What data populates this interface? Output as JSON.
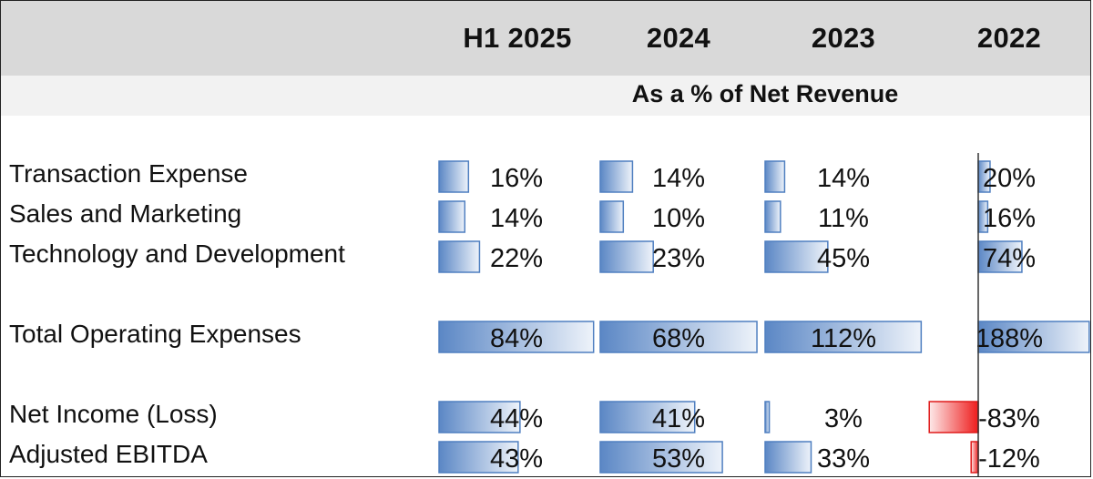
{
  "chart_data": {
    "type": "table",
    "subtitle": "As a % of Net Revenue",
    "columns": [
      "H1 2025",
      "2024",
      "2023",
      "2022"
    ],
    "rows": [
      {
        "label": "Transaction Expense",
        "values": [
          16,
          14,
          14,
          20
        ],
        "labels": [
          "16%",
          "14%",
          "14%",
          "20%"
        ]
      },
      {
        "label": "Sales and Marketing",
        "values": [
          14,
          10,
          11,
          16
        ],
        "labels": [
          "14%",
          "10%",
          "11%",
          "16%"
        ]
      },
      {
        "label": "Technology and Development",
        "values": [
          22,
          23,
          45,
          74
        ],
        "labels": [
          "22%",
          "23%",
          "45%",
          "74%"
        ]
      },
      {
        "label": "Total Operating Expenses",
        "values": [
          84,
          68,
          112,
          188
        ],
        "labels": [
          "84%",
          "68%",
          "112%",
          "188%"
        ]
      },
      {
        "label": "Net Income (Loss)",
        "values": [
          44,
          41,
          3,
          -83
        ],
        "labels": [
          "44%",
          "41%",
          "3%",
          "-83%"
        ]
      },
      {
        "label": "Adjusted EBITDA",
        "values": [
          43,
          53,
          33,
          -12
        ],
        "labels": [
          "43%",
          "53%",
          "33%",
          "-12%"
        ]
      }
    ],
    "colors": {
      "positive": "#4f7fc0",
      "negative": "#ee1c1c",
      "header_bg": "#d9d9d9",
      "subheader_bg": "#f2f2f2"
    }
  }
}
